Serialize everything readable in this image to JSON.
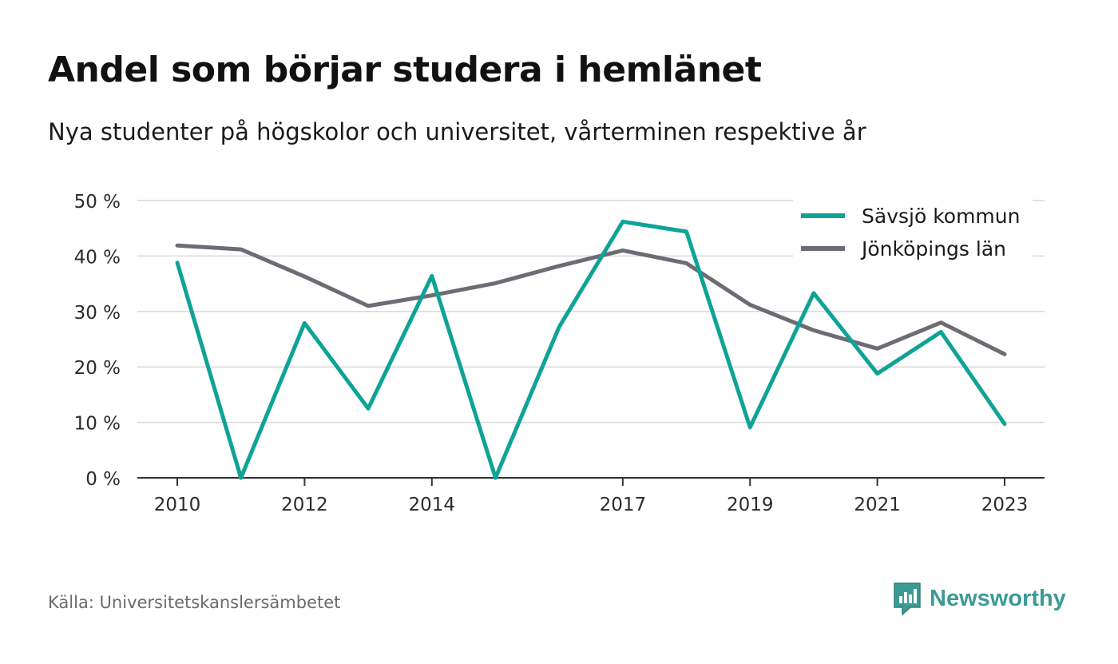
{
  "title": "Andel som börjar studera i hemlänet",
  "subtitle": "Nya studenter på högskolor och universitet, vårterminen respektive år",
  "source": "Källa: Universitetskanslersämbetet",
  "brand": "Newsworthy",
  "colors": {
    "series1": "#0fa397",
    "series2": "#6d6b73",
    "grid": "#d9d9d9",
    "axis": "#333333",
    "brand": "#3c9a95"
  },
  "chart_data": {
    "type": "line",
    "x": [
      2010,
      2011,
      2012,
      2013,
      2014,
      2015,
      2016,
      2017,
      2018,
      2019,
      2020,
      2021,
      2022,
      2023
    ],
    "xticks": [
      2010,
      2012,
      2014,
      2017,
      2019,
      2021,
      2023
    ],
    "yticks": [
      "0 %",
      "10 %",
      "20 %",
      "30 %",
      "40 %",
      "50 %"
    ],
    "ylim": [
      0,
      50
    ],
    "grid": true,
    "legend_position": "top-right",
    "series": [
      {
        "name": "Sävsjö kommun",
        "values": [
          38.8,
          0,
          27.9,
          12.5,
          36.4,
          0,
          27.2,
          46.2,
          44.4,
          9.1,
          33.3,
          18.8,
          26.3,
          9.7
        ]
      },
      {
        "name": "Jönköpings län",
        "values": [
          41.9,
          41.2,
          36.3,
          31.0,
          32.9,
          35.1,
          38.2,
          41.0,
          38.7,
          31.2,
          26.6,
          23.3,
          28.0,
          22.3
        ]
      }
    ]
  }
}
